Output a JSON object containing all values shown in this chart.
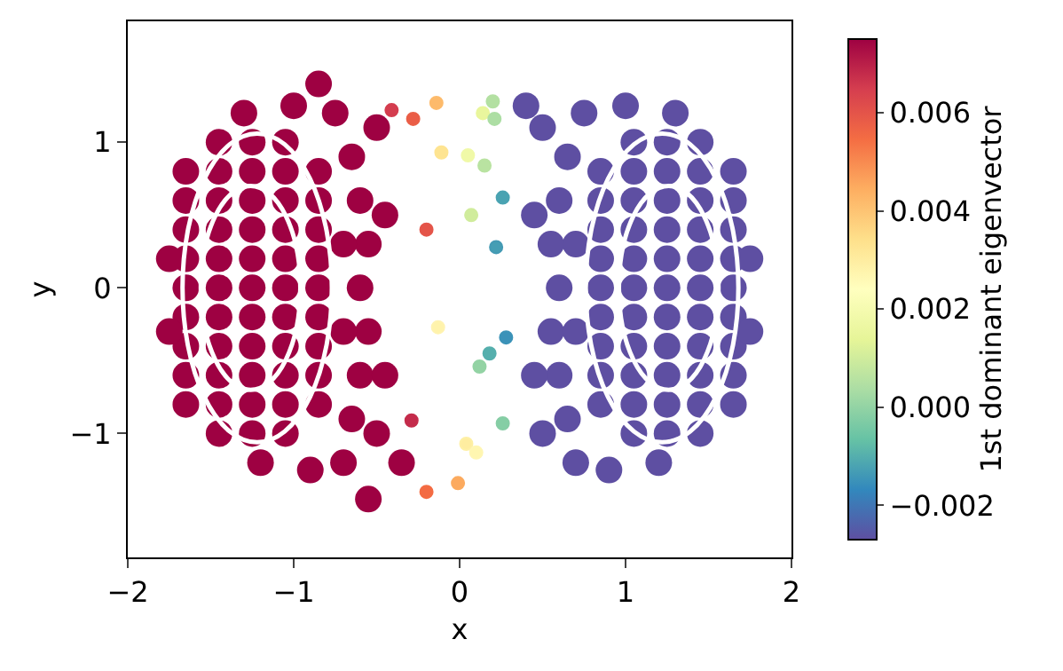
{
  "chart_data": {
    "type": "scatter",
    "xlabel": "x",
    "ylabel": "y",
    "clabel": "1st dominant eigenvector",
    "xlim": [
      -2,
      2
    ],
    "ylim": [
      -1.85,
      1.83
    ],
    "xticks": [
      {
        "value": -2,
        "label": "−2"
      },
      {
        "value": -1,
        "label": "−1"
      },
      0,
      1,
      2
    ],
    "yticks": [
      {
        "value": -1,
        "label": "−1"
      },
      0,
      1
    ],
    "clim": [
      -0.0027,
      0.0075
    ],
    "cticks": [
      {
        "value": -0.002,
        "label": "−0.002"
      },
      {
        "value": 0,
        "label": "0.000"
      },
      0.002,
      0.004,
      0.006
    ],
    "grid": false,
    "series": [
      {
        "color": "#9e0142",
        "x": [
          -1.45,
          -1.25,
          -1.05,
          -1.65,
          -1.45,
          -1.25,
          -1.05,
          -0.85,
          -1.65,
          -1.45,
          -1.25,
          -1.05,
          -0.85,
          -1.65,
          -1.45,
          -1.25,
          -1.05,
          -0.85,
          -1.65,
          -1.45,
          -1.25,
          -1.05,
          -0.85,
          -1.65,
          -1.45,
          -1.25,
          -1.05,
          -0.85,
          -1.65,
          -1.45,
          -1.25,
          -1.05,
          -0.85,
          -1.65,
          -1.45,
          -1.25,
          -1.05,
          -0.85,
          -1.65,
          -1.45,
          -1.25,
          -1.05,
          -0.85,
          -1.65,
          -1.45,
          -1.25,
          -1.05,
          -0.85,
          -1.45,
          -1.25,
          -1.05,
          -0.65,
          -0.6,
          -0.55,
          -0.6,
          -0.55,
          -0.6,
          -0.65,
          -0.45,
          -0.45,
          -0.75,
          -1.0,
          -1.3,
          -0.9,
          -1.2,
          -0.7,
          -0.5,
          -0.5,
          -1.75,
          -1.75,
          -0.35,
          -0.55,
          -0.85,
          -0.7,
          -0.7
        ],
        "values": [
          1.0,
          1.0,
          1.0,
          0.8,
          0.8,
          0.8,
          0.8,
          0.8,
          0.6,
          0.6,
          0.6,
          0.6,
          0.6,
          0.4,
          0.4,
          0.4,
          0.4,
          0.4,
          0.2,
          0.2,
          0.2,
          0.2,
          0.2,
          0,
          0,
          0,
          0,
          0,
          -0.2,
          -0.2,
          -0.2,
          -0.2,
          -0.2,
          -0.4,
          -0.4,
          -0.4,
          -0.4,
          -0.4,
          -0.6,
          -0.6,
          -0.6,
          -0.6,
          -0.6,
          -0.8,
          -0.8,
          -0.8,
          -0.8,
          -0.8,
          -1.0,
          -1.0,
          -1.0,
          0.9,
          0.6,
          0.3,
          0,
          -0.3,
          -0.6,
          -0.9,
          0.5,
          -0.6,
          1.2,
          1.25,
          1.2,
          -1.25,
          -1.2,
          -1.2,
          1.1,
          -1.0,
          0.2,
          -0.3,
          -1.2,
          -1.45,
          1.4,
          -0.3,
          0.3
        ]
      },
      {
        "color": "#5e4fa2",
        "x": [
          1.05,
          1.25,
          1.45,
          0.85,
          1.05,
          1.25,
          1.45,
          1.65,
          0.85,
          1.05,
          1.25,
          1.45,
          1.65,
          0.85,
          1.05,
          1.25,
          1.45,
          1.65,
          0.85,
          1.05,
          1.25,
          1.45,
          1.65,
          0.85,
          1.05,
          1.25,
          1.45,
          1.65,
          0.85,
          1.05,
          1.25,
          1.45,
          1.65,
          0.85,
          1.05,
          1.25,
          1.45,
          1.65,
          0.85,
          1.05,
          1.25,
          1.45,
          1.65,
          0.85,
          1.05,
          1.25,
          1.45,
          1.65,
          1.05,
          1.25,
          1.45,
          0.65,
          0.6,
          0.55,
          0.6,
          0.55,
          0.6,
          0.65,
          0.45,
          0.45,
          0.75,
          1.0,
          1.3,
          0.9,
          1.2,
          0.7,
          0.5,
          0.5,
          1.75,
          1.75,
          0.4,
          0.7,
          0.7
        ],
        "values": [
          1.0,
          1.0,
          1.0,
          0.8,
          0.8,
          0.8,
          0.8,
          0.8,
          0.6,
          0.6,
          0.6,
          0.6,
          0.6,
          0.4,
          0.4,
          0.4,
          0.4,
          0.4,
          0.2,
          0.2,
          0.2,
          0.2,
          0.2,
          0,
          0,
          0,
          0,
          0,
          -0.2,
          -0.2,
          -0.2,
          -0.2,
          -0.2,
          -0.4,
          -0.4,
          -0.4,
          -0.4,
          -0.4,
          -0.6,
          -0.6,
          -0.6,
          -0.6,
          -0.6,
          -0.8,
          -0.8,
          -0.8,
          -0.8,
          -0.8,
          -1.0,
          -1.0,
          -1.0,
          0.9,
          0.6,
          0.3,
          0,
          -0.3,
          -0.6,
          -0.9,
          0.5,
          -0.6,
          1.2,
          1.25,
          1.2,
          -1.25,
          -1.2,
          -1.2,
          1.1,
          -1.0,
          0.2,
          -0.3,
          1.25,
          -0.3,
          0.3
        ]
      },
      {
        "x": [
          -0.41,
          -0.28,
          -0.14,
          -0.11,
          0.2,
          0.14,
          0.21,
          0.05,
          0.15,
          0.26,
          0.07,
          -0.2,
          0.22,
          -0.13,
          0.18,
          0.12,
          0.28,
          0.26,
          -0.29,
          0.04,
          0.1,
          -0.01,
          -0.2
        ],
        "values": [
          1.22,
          1.16,
          1.27,
          0.93,
          1.28,
          1.2,
          1.16,
          0.91,
          0.84,
          0.62,
          0.5,
          0.4,
          0.28,
          -0.27,
          -0.45,
          -0.54,
          -0.34,
          -0.93,
          -0.91,
          -1.07,
          -1.13,
          -1.34,
          -1.4
        ],
        "colors": [
          "#d43d4f",
          "#ea5f47",
          "#fdbb6c",
          "#fee491",
          "#b3e0a2",
          "#e9f69b",
          "#acdea4",
          "#f0f9a8",
          "#b9e3a1",
          "#4aa3b2",
          "#d0ec9c",
          "#e4554a",
          "#449ab4",
          "#fff3b0",
          "#55afad",
          "#93d3a4",
          "#3c93b8",
          "#86cda5",
          "#c42d4b",
          "#fef0a5",
          "#fff6b3",
          "#fcab5f",
          "#f46c43"
        ],
        "cvalues": [
          0.0065,
          0.0058,
          0.0042,
          0.0033,
          0.0005,
          0.0015,
          0.0004,
          0.0018,
          0.0006,
          -0.0012,
          0.001,
          0.006,
          -0.0013,
          0.0028,
          -0.001,
          0,
          -0.0015,
          -0.0002,
          0.0068,
          0.003,
          0.0027,
          0.0045,
          0.0055
        ]
      }
    ]
  }
}
